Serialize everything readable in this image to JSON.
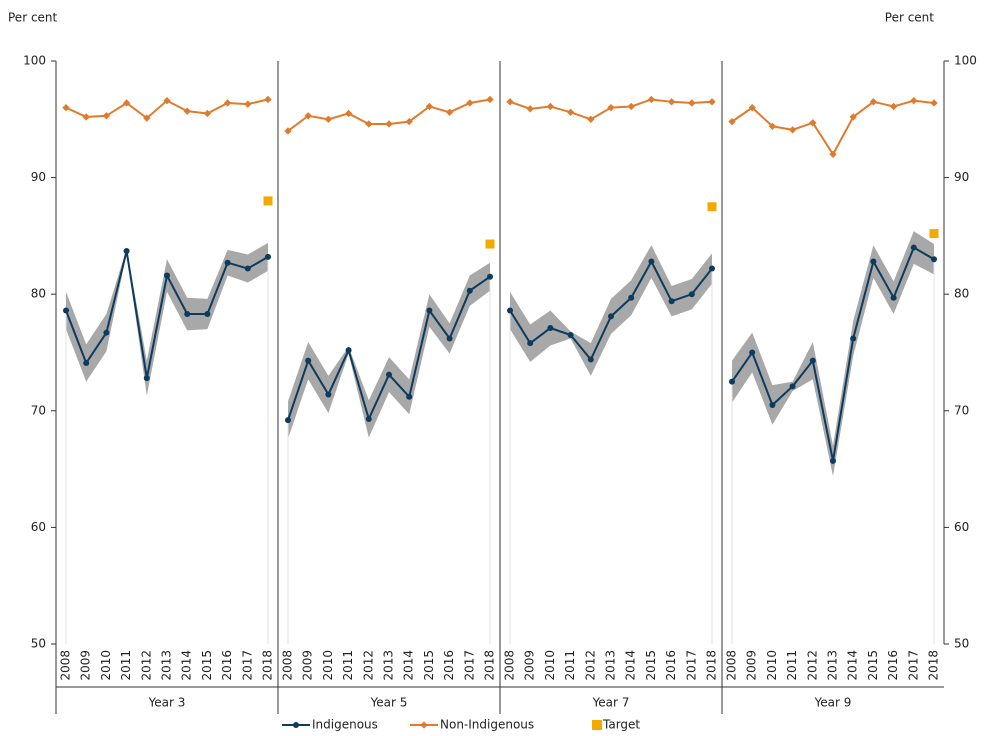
{
  "chart_data": [
    {
      "type": "line",
      "y_label": "Per cent",
      "xlabel": "Year 3",
      "categories": [
        "2008",
        "2009",
        "2010",
        "2011",
        "2012",
        "2013",
        "2014",
        "2015",
        "2016",
        "2017",
        "2018"
      ],
      "ylim": [
        50,
        100
      ],
      "yticks": [
        50,
        60,
        70,
        80,
        90,
        100
      ],
      "series": [
        {
          "name": "Indigenous",
          "color": "#0d3b5e",
          "values": [
            78.6,
            74.1,
            76.7,
            83.7,
            72.8,
            81.6,
            78.3,
            78.3,
            82.7,
            82.2,
            83.2
          ],
          "ci": [
            1.6,
            1.6,
            1.6,
            0.2,
            1.5,
            1.4,
            1.4,
            1.3,
            1.1,
            1.2,
            1.2
          ]
        },
        {
          "name": "Non-Indigenous",
          "color": "#e07b2e",
          "values": [
            96.0,
            95.2,
            95.3,
            96.4,
            95.1,
            96.6,
            95.7,
            95.5,
            96.4,
            96.3,
            96.7
          ]
        },
        {
          "name": "Target",
          "color": "#f5a800",
          "values": [
            null,
            null,
            null,
            null,
            null,
            null,
            null,
            null,
            null,
            null,
            88.0
          ]
        }
      ]
    },
    {
      "type": "line",
      "xlabel": "Year 5",
      "categories": [
        "2008",
        "2009",
        "2010",
        "2011",
        "2012",
        "2013",
        "2014",
        "2015",
        "2016",
        "2017",
        "2018"
      ],
      "ylim": [
        50,
        100
      ],
      "yticks": [
        50,
        60,
        70,
        80,
        90,
        100
      ],
      "series": [
        {
          "name": "Indigenous",
          "color": "#0d3b5e",
          "values": [
            69.2,
            74.3,
            71.4,
            75.2,
            69.3,
            73.1,
            71.2,
            78.6,
            76.2,
            80.3,
            81.5
          ],
          "ci": [
            1.6,
            1.6,
            1.6,
            0.3,
            1.6,
            1.5,
            1.5,
            1.4,
            1.3,
            1.3,
            1.2
          ]
        },
        {
          "name": "Non-Indigenous",
          "color": "#e07b2e",
          "values": [
            94.0,
            95.3,
            95.0,
            95.5,
            94.6,
            94.6,
            94.8,
            96.1,
            95.6,
            96.4,
            96.7
          ]
        },
        {
          "name": "Target",
          "color": "#f5a800",
          "values": [
            null,
            null,
            null,
            null,
            null,
            null,
            null,
            null,
            null,
            null,
            84.3
          ]
        }
      ]
    },
    {
      "type": "line",
      "xlabel": "Year 7",
      "categories": [
        "2008",
        "2009",
        "2010",
        "2011",
        "2012",
        "2013",
        "2014",
        "2015",
        "2016",
        "2017",
        "2018"
      ],
      "ylim": [
        50,
        100
      ],
      "yticks": [
        50,
        60,
        70,
        80,
        90,
        100
      ],
      "series": [
        {
          "name": "Indigenous",
          "color": "#0d3b5e",
          "values": [
            78.6,
            75.8,
            77.1,
            76.5,
            74.4,
            78.1,
            79.7,
            82.8,
            79.4,
            80.0,
            82.2
          ],
          "ci": [
            1.6,
            1.6,
            1.5,
            0.3,
            1.4,
            1.5,
            1.5,
            1.4,
            1.3,
            1.3,
            1.3
          ]
        },
        {
          "name": "Non-Indigenous",
          "color": "#e07b2e",
          "values": [
            96.5,
            95.9,
            96.1,
            95.6,
            95.0,
            96.0,
            96.1,
            96.7,
            96.5,
            96.4,
            96.5
          ]
        },
        {
          "name": "Target",
          "color": "#f5a800",
          "values": [
            null,
            null,
            null,
            null,
            null,
            null,
            null,
            null,
            null,
            null,
            87.5
          ]
        }
      ]
    },
    {
      "type": "line",
      "y_label": "Per cent",
      "xlabel": "Year 9",
      "categories": [
        "2008",
        "2009",
        "2010",
        "2011",
        "2012",
        "2013",
        "2014",
        "2015",
        "2016",
        "2017",
        "2018"
      ],
      "ylim": [
        50,
        100
      ],
      "yticks": [
        50,
        60,
        70,
        80,
        90,
        100
      ],
      "series": [
        {
          "name": "Indigenous",
          "color": "#0d3b5e",
          "values": [
            72.5,
            75.0,
            70.5,
            72.1,
            74.3,
            65.7,
            76.2,
            82.8,
            79.7,
            84.0,
            83.0
          ],
          "ci": [
            1.8,
            1.7,
            1.7,
            0.4,
            1.6,
            1.3,
            1.5,
            1.4,
            1.4,
            1.4,
            1.3
          ]
        },
        {
          "name": "Non-Indigenous",
          "color": "#e07b2e",
          "values": [
            94.8,
            96.0,
            94.4,
            94.1,
            94.7,
            92.0,
            95.2,
            96.5,
            96.1,
            96.6,
            96.4
          ]
        },
        {
          "name": "Target",
          "color": "#f5a800",
          "values": [
            null,
            null,
            null,
            null,
            null,
            null,
            null,
            null,
            null,
            null,
            85.2
          ]
        }
      ]
    }
  ]
}
